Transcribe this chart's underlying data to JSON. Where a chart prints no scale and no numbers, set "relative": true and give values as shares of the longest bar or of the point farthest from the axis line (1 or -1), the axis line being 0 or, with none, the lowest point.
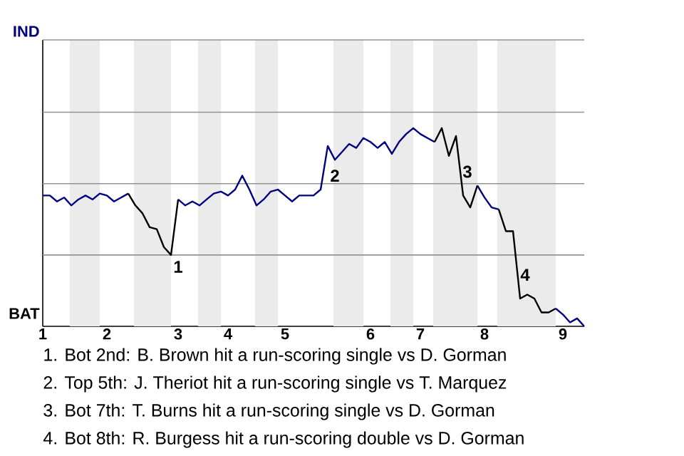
{
  "chart_data": {
    "type": "line",
    "relative": true,
    "categories": [
      "1",
      null,
      null,
      null,
      null,
      null,
      null,
      null,
      null,
      "2",
      null,
      null,
      null,
      null,
      null,
      null,
      null,
      null,
      null,
      "3",
      null,
      null,
      null,
      null,
      null,
      null,
      "4",
      null,
      null,
      null,
      null,
      null,
      null,
      null,
      "5",
      null,
      null,
      null,
      null,
      null,
      null,
      null,
      null,
      null,
      null,
      null,
      "6",
      null,
      null,
      null,
      null,
      null,
      null,
      "7",
      null,
      null,
      null,
      null,
      null,
      null,
      null,
      null,
      "8",
      null,
      null,
      null,
      null,
      null,
      null,
      null,
      null,
      null,
      null,
      "9",
      null,
      null,
      null
    ],
    "marker": "none",
    "line_style": "solid",
    "ref_lines": [
      {
        "axis": "y",
        "value": 0.36,
        "color": "#939393"
      },
      {
        "axis": "y",
        "value": 0.72,
        "color": "#939393"
      },
      {
        "axis": "y",
        "value": 1.08,
        "color": "#939393"
      }
    ],
    "series": [
      {
        "color": "#000080",
        "values": [
          0.66,
          0.66,
          0.63,
          0.65,
          0.61,
          0.64,
          0.66,
          0.64,
          0.67,
          0.66,
          0.63,
          0.65,
          0.67,
          null,
          null,
          null,
          null,
          null,
          null,
          0.64,
          0.61,
          0.63,
          0.61,
          0.64,
          0.67,
          0.68,
          0.66,
          0.69,
          0.76,
          0.69,
          0.61,
          0.64,
          0.68,
          0.69,
          0.66,
          0.63,
          0.66,
          0.66,
          0.66,
          0.69,
          0.91,
          0.84,
          0.88,
          0.92,
          0.9,
          0.95,
          0.93,
          0.9,
          0.93,
          0.87,
          0.93,
          0.97,
          1,
          0.97,
          0.95,
          0.93,
          null,
          null,
          null,
          null,
          null,
          0.71,
          0.65,
          0.6,
          0.59,
          null,
          null,
          null,
          null,
          null,
          null,
          null,
          0.09,
          0.06,
          0.02,
          0.04,
          0
        ]
      },
      {
        "color": "#000000",
        "values": [
          null,
          null,
          null,
          null,
          null,
          null,
          null,
          null,
          null,
          null,
          null,
          null,
          0.67,
          0.61,
          0.57,
          0.5,
          0.49,
          0.4,
          0.36,
          0.64,
          null,
          null,
          null,
          null,
          null,
          null,
          null,
          null,
          null,
          null,
          null,
          null,
          null,
          null,
          null,
          null,
          null,
          null,
          null,
          null,
          null,
          null,
          null,
          null,
          null,
          null,
          null,
          null,
          null,
          null,
          null,
          null,
          null,
          null,
          null,
          0.93,
          1,
          0.86,
          0.96,
          0.66,
          0.6,
          0.71,
          null,
          null,
          0.59,
          0.48,
          0.48,
          0.14,
          0.16,
          0.14,
          0.07,
          0.07,
          0.09,
          null,
          null,
          null,
          null
        ]
      }
    ],
    "annotations": [
      "IND",
      "BAT",
      "1",
      "2",
      "3",
      "4",
      "1. Bot 2nd: B. Brown hit a run-scoring single vs D. Gorman",
      "2. Top 5th: J. Theriot hit a run-scoring single vs T. Marquez",
      "3. Bot 7th: T. Burns hit a run-scoring single vs D. Gorman",
      "4. Bot 8th: R. Burgess hit a run-scoring double vs D. Gorman"
    ]
  }
}
